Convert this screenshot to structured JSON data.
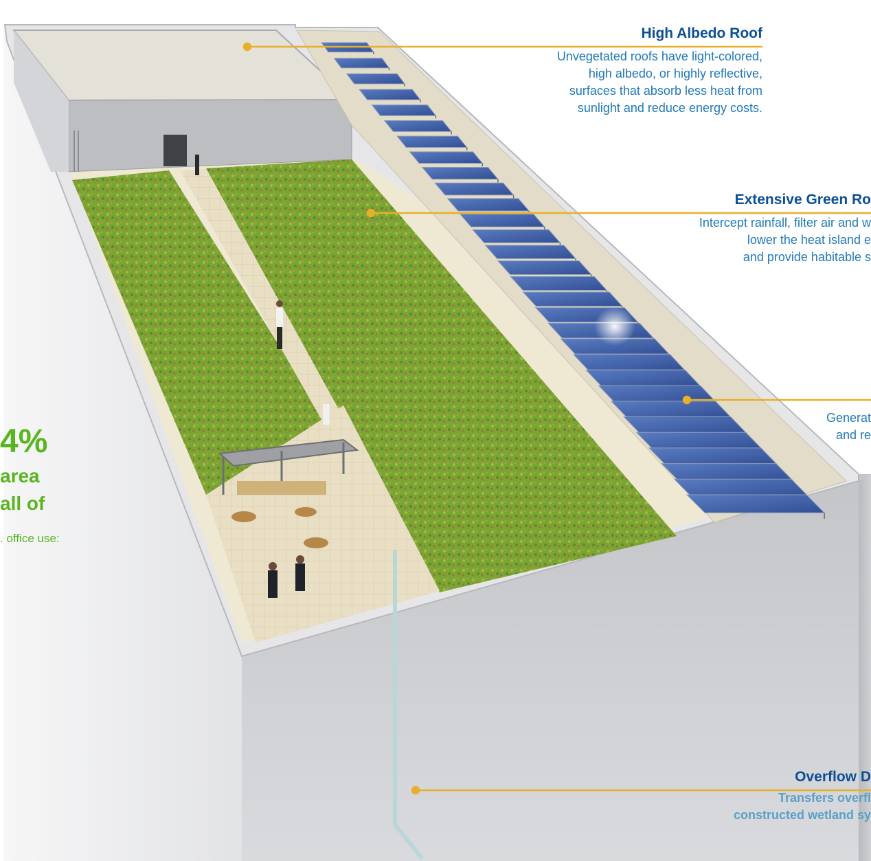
{
  "callouts": {
    "high_albedo": {
      "title": "High Albedo Roof",
      "lines": [
        "Unvegetated roofs have light-colored,",
        "high albedo, or highly reflective,",
        "surfaces that absorb less heat from",
        "sunlight and reduce energy costs."
      ]
    },
    "green_roof": {
      "title": "Extensive Green Ro",
      "lines": [
        "Intercept rainfall, filter air and w",
        "lower the heat island e",
        "and provide habitable s"
      ]
    },
    "solar": {
      "lines": [
        "Generat",
        "and re"
      ]
    },
    "overflow": {
      "title": "Overflow D",
      "lines": [
        "Transfers overfl",
        "constructed wetland sy"
      ]
    }
  },
  "stat": {
    "value": "4%",
    "line1": "area",
    "line2": "all of",
    "line3": ". office use:"
  },
  "colors": {
    "leader": "#e8b02a",
    "title": "#0b4f95",
    "desc": "#1f78b8",
    "stat": "#58b51f",
    "grass": "#7ba534",
    "solar": "#3e5fa8",
    "wall": "#c9cacd",
    "paving": "#e7dcc0"
  }
}
